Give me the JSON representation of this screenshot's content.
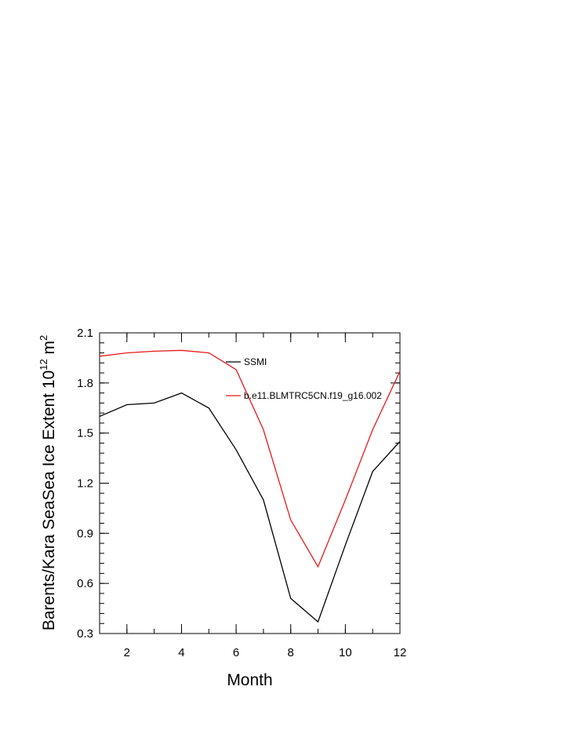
{
  "chart_data": {
    "type": "line",
    "xlabel": "Month",
    "ylabel": {
      "prefix": "Barents/Kara SeaSea Ice Extent 10",
      "exponent": "12",
      "unit": " m",
      "unit_exponent": "2"
    },
    "xlim": [
      1,
      12
    ],
    "ylim": [
      0.3,
      2.1
    ],
    "xticks": [
      2,
      4,
      6,
      8,
      10,
      12
    ],
    "yticks": [
      0.3,
      0.6,
      0.9,
      1.2,
      1.5,
      1.8,
      2.1
    ],
    "ytick_labels": [
      "0.3",
      "0.6",
      "0.9",
      "1.2",
      "1.5",
      "1.8",
      "2.1"
    ],
    "x": [
      1,
      2,
      3,
      4,
      5,
      6,
      7,
      8,
      9,
      10,
      11,
      12
    ],
    "series": [
      {
        "name": "SSMI",
        "color": "#000000",
        "values": [
          1.6,
          1.67,
          1.68,
          1.74,
          1.65,
          1.4,
          1.1,
          0.51,
          0.37,
          0.83,
          1.27,
          1.45
        ]
      },
      {
        "name": "b.e11.BLMTRC5CN.f19_g16.002",
        "color": "#e8191c",
        "values": [
          1.96,
          1.98,
          1.99,
          1.995,
          1.98,
          1.88,
          1.52,
          0.98,
          0.7,
          1.1,
          1.52,
          1.87
        ]
      }
    ],
    "legend_position": "top-right",
    "grid": false
  }
}
